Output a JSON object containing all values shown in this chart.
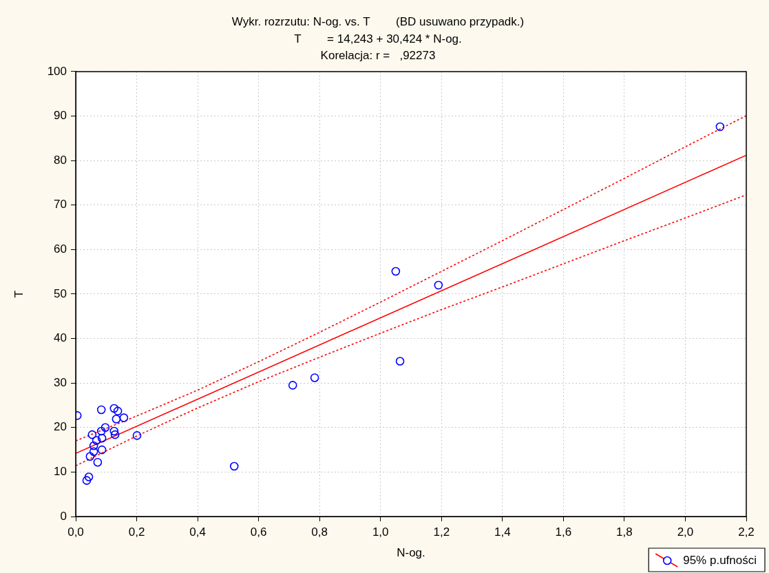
{
  "chart_data": {
    "type": "scatter",
    "title": "Wykr. rozrzutu: N-og. vs. T        (BD usuwano przypadk.)",
    "subtitle": "T        = 14,243 + 30,424 * N-og.",
    "annotations": [
      "Korelacja: r =   ,92273"
    ],
    "xlabel": "N-og.",
    "ylabel": "T",
    "xlim": [
      0,
      2.2
    ],
    "xticks": [
      {
        "value": 0,
        "label": "0,0"
      },
      {
        "value": 0.2,
        "label": "0,2"
      },
      {
        "value": 0.4,
        "label": "0,4"
      },
      {
        "value": 0.6,
        "label": "0,6"
      },
      {
        "value": 0.8,
        "label": "0,8"
      },
      {
        "value": 1,
        "label": "1,0"
      },
      {
        "value": 1.2,
        "label": "1,2"
      },
      {
        "value": 1.4,
        "label": "1,4"
      },
      {
        "value": 1.6,
        "label": "1,6"
      },
      {
        "value": 1.8,
        "label": "1,8"
      },
      {
        "value": 2,
        "label": "2,0"
      },
      {
        "value": 2.2,
        "label": "2,2"
      }
    ],
    "ylim": [
      0,
      100
    ],
    "yticks": [
      0,
      10,
      20,
      30,
      40,
      50,
      60,
      70,
      80,
      90,
      100
    ],
    "grid": true,
    "legend": "bottom right",
    "marker": "circle",
    "series": [
      {
        "color": "#0000ff",
        "x": [
          0.005,
          0.084,
          0.126,
          0.138,
          0.158,
          0.133,
          0.097,
          0.084,
          0.054,
          0.129,
          0.126,
          0.201,
          0.086,
          0.068,
          0.059,
          0.059,
          0.086,
          0.047,
          0.072,
          0.043,
          0.036,
          0.52,
          0.712,
          0.784,
          1.05,
          1.064,
          1.19,
          2.114
        ],
        "values": [
          22.7,
          24.0,
          24.3,
          23.7,
          22.2,
          21.9,
          20.0,
          19.2,
          18.4,
          18.4,
          19.2,
          18.2,
          17.6,
          17.1,
          15.9,
          14.6,
          15.0,
          13.5,
          12.2,
          8.9,
          8.1,
          11.3,
          29.5,
          31.2,
          55.1,
          34.9,
          52.0,
          87.6
        ]
      },
      {
        "type": "line",
        "name": "95% p.ufności",
        "color": "#ff0000",
        "line_style": "solid",
        "marker": "none",
        "x": [
          0,
          2.2
        ],
        "values": [
          14.2,
          81.2
        ]
      },
      {
        "type": "line",
        "color": "#ff0000",
        "line_style": "dotted",
        "marker": "none",
        "x": [
          0,
          0.2,
          0.4,
          0.6,
          0.8,
          1.0,
          1.2,
          1.4,
          1.6,
          1.8,
          2.0,
          2.2
        ],
        "values": [
          17.0,
          22.6,
          28.4,
          34.8,
          41.4,
          48.2,
          55.1,
          62.0,
          69.0,
          76.0,
          83.1,
          90.1
        ]
      },
      {
        "type": "line",
        "color": "#ff0000",
        "line_style": "dotted",
        "marker": "none",
        "x": [
          0,
          0.2,
          0.4,
          0.6,
          0.8,
          1.0,
          1.2,
          1.4,
          1.6,
          1.8,
          2.0,
          2.2
        ],
        "values": [
          11.4,
          18.1,
          24.4,
          30.3,
          35.8,
          41.2,
          46.5,
          51.6,
          56.8,
          62.0,
          67.1,
          72.3
        ]
      }
    ]
  }
}
